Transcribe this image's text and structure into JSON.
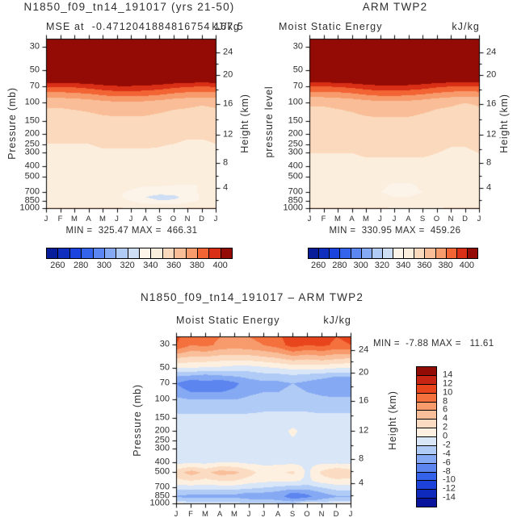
{
  "page": {
    "background": "#ffffff",
    "text_color": "#2e2e2e"
  },
  "chart_data": [
    {
      "type": "heatmap",
      "id": "model",
      "title": "N1850_f09_tn14_191017 (yrs 21-50)",
      "subtitle_left": "MSE at  -0.4712041884816754 167.5",
      "subtitle_right": "kJ/kg",
      "ylabel_left": "Pressure (mb)",
      "ylabel_right": "Height (km)",
      "stats": "MIN =  325.47 MAX =  466.31",
      "months": [
        "J",
        "F",
        "M",
        "A",
        "M",
        "J",
        "J",
        "A",
        "S",
        "O",
        "N",
        "D",
        "J"
      ],
      "pressure_ticks": [
        "30",
        "50",
        "70",
        "100",
        "150",
        "200",
        "250",
        "300",
        "400",
        "500",
        "700",
        "850",
        "1000"
      ],
      "height_ticks": [
        "24",
        "20",
        "16",
        "12",
        "8",
        "4"
      ],
      "colorbar_labels": [
        "260",
        "280",
        "300",
        "320",
        "340",
        "360",
        "380",
        "400"
      ],
      "palette": [
        "#071d9a",
        "#102fbf",
        "#1b44de",
        "#3564ec",
        "#5c86f1",
        "#85aaf3",
        "#b0cbf5",
        "#cddef5",
        "#fdf4e9",
        "#fceedd",
        "#fbd9bc",
        "#f9bd97",
        "#f79a6c",
        "#f26434",
        "#d92f16",
        "#930b04"
      ],
      "value_bins": {
        "min": 250,
        "step": 10
      },
      "pressure_levels": [
        25,
        30,
        40,
        50,
        60,
        70,
        85,
        100,
        150,
        200,
        300,
        400,
        500,
        600,
        700,
        780,
        850,
        925,
        1000
      ],
      "values": [
        [
          466,
          466,
          466,
          466,
          466,
          466,
          466,
          466,
          466,
          466,
          466,
          466,
          466
        ],
        [
          462,
          462,
          462,
          462,
          462,
          462,
          462,
          462,
          462,
          462,
          462,
          462,
          462
        ],
        [
          445,
          445,
          445,
          445,
          445,
          445,
          445,
          445,
          445,
          445,
          445,
          445,
          445
        ],
        [
          428,
          428,
          428,
          428,
          428,
          428,
          428,
          428,
          428,
          428,
          428,
          428,
          428
        ],
        [
          409,
          409,
          410,
          411,
          413,
          414,
          414,
          414,
          412,
          410,
          409,
          408,
          409
        ],
        [
          391,
          391,
          392,
          394,
          397,
          399,
          399,
          398,
          396,
          393,
          391,
          390,
          391
        ],
        [
          374,
          374,
          375,
          377,
          380,
          382,
          382,
          381,
          379,
          376,
          374,
          373,
          374
        ],
        [
          362,
          362,
          363,
          364,
          366,
          368,
          368,
          367,
          365,
          363,
          362,
          361,
          362
        ],
        [
          355,
          355,
          355,
          356,
          357,
          357,
          357,
          357,
          356,
          355,
          355,
          354,
          355
        ],
        [
          352,
          352,
          352,
          352,
          353,
          353,
          353,
          353,
          352,
          352,
          351,
          351,
          352
        ],
        [
          348,
          348,
          348,
          348,
          349,
          349,
          349,
          349,
          349,
          348,
          347,
          347,
          348
        ],
        [
          345,
          345,
          345,
          345,
          346,
          346,
          346,
          346,
          346,
          345,
          344,
          344,
          345
        ],
        [
          342,
          342,
          342,
          342,
          343,
          343,
          343,
          343,
          342,
          342,
          341,
          341,
          342
        ],
        [
          341,
          341,
          341,
          341,
          342,
          342,
          342,
          341,
          341,
          340,
          340,
          340,
          341
        ],
        [
          341,
          341,
          341,
          341,
          341,
          341,
          339,
          336,
          334,
          335,
          338,
          341,
          341
        ],
        [
          342,
          342,
          342,
          342,
          342,
          341,
          338,
          330,
          326,
          327,
          334,
          341,
          342
        ],
        [
          343,
          343,
          343,
          343,
          343,
          342,
          340,
          335,
          331,
          332,
          337,
          342,
          343
        ],
        [
          346,
          346,
          346,
          346,
          346,
          345,
          344,
          343,
          342,
          342,
          344,
          346,
          346
        ],
        [
          352,
          352,
          352,
          352,
          352,
          352,
          351,
          351,
          350,
          351,
          352,
          352,
          352
        ]
      ]
    },
    {
      "type": "heatmap",
      "id": "obs",
      "title": "ARM TWP2",
      "subtitle_left": "Moist Static Energy",
      "subtitle_right": "kJ/kg",
      "ylabel_left": "pressure level",
      "ylabel_right": "Height (km)",
      "stats": "MIN =  330.95 MAX =  459.26",
      "months": [
        "J",
        "F",
        "M",
        "A",
        "M",
        "J",
        "J",
        "A",
        "S",
        "O",
        "N",
        "D",
        "J"
      ],
      "pressure_ticks": [
        "30",
        "50",
        "70",
        "100",
        "150",
        "200",
        "250",
        "300",
        "400",
        "500",
        "700",
        "850",
        "1000"
      ],
      "height_ticks": [
        "24",
        "20",
        "16",
        "12",
        "8",
        "4"
      ],
      "colorbar_labels": [
        "260",
        "280",
        "300",
        "320",
        "340",
        "360",
        "380",
        "400"
      ],
      "palette": [
        "#071d9a",
        "#102fbf",
        "#1b44de",
        "#3564ec",
        "#5c86f1",
        "#85aaf3",
        "#b0cbf5",
        "#cddef5",
        "#fdf4e9",
        "#fceedd",
        "#fbd9bc",
        "#f9bd97",
        "#f79a6c",
        "#f26434",
        "#d92f16",
        "#930b04"
      ],
      "value_bins": {
        "min": 250,
        "step": 10
      },
      "pressure_levels": [
        25,
        30,
        40,
        50,
        60,
        70,
        85,
        100,
        150,
        200,
        300,
        400,
        500,
        600,
        700,
        780,
        850,
        925,
        1000
      ],
      "values": [
        [
          459,
          459,
          459,
          459,
          459,
          459,
          459,
          459,
          459,
          459,
          459,
          459,
          459
        ],
        [
          456,
          456,
          456,
          456,
          456,
          456,
          456,
          456,
          456,
          456,
          456,
          456,
          456
        ],
        [
          442,
          442,
          442,
          442,
          442,
          442,
          442,
          442,
          442,
          442,
          442,
          442,
          442
        ],
        [
          426,
          426,
          426,
          426,
          426,
          426,
          426,
          426,
          426,
          426,
          426,
          426,
          426
        ],
        [
          408,
          408,
          409,
          410,
          412,
          413,
          413,
          413,
          411,
          409,
          408,
          407,
          408
        ],
        [
          390,
          390,
          391,
          393,
          396,
          398,
          398,
          397,
          395,
          392,
          390,
          389,
          390
        ],
        [
          373,
          373,
          374,
          376,
          379,
          381,
          381,
          380,
          378,
          375,
          373,
          372,
          373
        ],
        [
          361,
          361,
          362,
          363,
          365,
          367,
          367,
          366,
          364,
          362,
          361,
          360,
          361
        ],
        [
          356,
          356,
          356,
          357,
          358,
          358,
          358,
          358,
          357,
          356,
          356,
          355,
          356
        ],
        [
          353,
          353,
          353,
          353,
          354,
          354,
          354,
          354,
          353,
          353,
          352,
          352,
          353
        ],
        [
          350,
          350,
          350,
          350,
          351,
          351,
          351,
          351,
          351,
          350,
          349,
          349,
          350
        ],
        [
          347,
          347,
          347,
          347,
          348,
          348,
          348,
          348,
          348,
          347,
          346,
          346,
          347
        ],
        [
          344,
          344,
          344,
          344,
          345,
          344,
          343,
          343,
          344,
          344,
          343,
          343,
          344
        ],
        [
          342,
          342,
          342,
          342,
          342,
          341,
          339,
          339,
          341,
          342,
          341,
          341,
          342
        ],
        [
          341,
          341,
          341,
          341,
          341,
          340,
          339,
          339,
          340,
          341,
          340,
          340,
          341
        ],
        [
          341,
          341,
          341,
          341,
          341,
          341,
          340,
          340,
          341,
          341,
          341,
          341,
          341
        ],
        [
          342,
          342,
          342,
          342,
          342,
          342,
          341,
          341,
          342,
          342,
          342,
          342,
          342
        ],
        [
          345,
          345,
          345,
          345,
          345,
          345,
          345,
          345,
          345,
          345,
          345,
          345,
          345
        ],
        [
          352,
          352,
          352,
          352,
          352,
          352,
          351,
          351,
          351,
          351,
          352,
          352,
          352
        ]
      ]
    },
    {
      "type": "heatmap",
      "id": "diff",
      "title": "N1850_f09_tn14_191017 – ARM TWP2",
      "subtitle_left": "Moist Static Energy",
      "subtitle_right": "kJ/kg",
      "ylabel_left": "Pressure (mb)",
      "ylabel_right": "Height (km)",
      "stats": "MIN =  -7.88 MAX =   11.61",
      "months": [
        "J",
        "F",
        "M",
        "A",
        "M",
        "J",
        "J",
        "A",
        "S",
        "O",
        "N",
        "D",
        "J"
      ],
      "pressure_ticks": [
        "30",
        "50",
        "70",
        "100",
        "150",
        "200",
        "250",
        "300",
        "400",
        "500",
        "700",
        "850",
        "1000"
      ],
      "height_ticks": [
        "24",
        "20",
        "16",
        "12",
        "8",
        "4"
      ],
      "colorbar_labels": [
        "14",
        "12",
        "10",
        "8",
        "6",
        "4",
        "2",
        "0",
        "-2",
        "-4",
        "-6",
        "-8",
        "-10",
        "-12",
        "-14"
      ],
      "palette": [
        "#07149b",
        "#0e2abc",
        "#1c42da",
        "#3562ea",
        "#5c85f0",
        "#85a9f3",
        "#b0cbf5",
        "#d8e6f8",
        "#fdf0e0",
        "#fbdcc2",
        "#f9bf9b",
        "#f79a6c",
        "#f4703c",
        "#e8451d",
        "#c52512",
        "#920b04"
      ],
      "value_bins": {
        "min": -16,
        "step": 2
      },
      "pressure_levels": [
        25,
        30,
        40,
        50,
        60,
        70,
        85,
        100,
        150,
        200,
        300,
        400,
        500,
        600,
        700,
        780,
        850,
        925,
        1000
      ],
      "values": [
        [
          10.5,
          8.5,
          9,
          8,
          7.5,
          8,
          8.5,
          9.5,
          11.5,
          10.5,
          11,
          10,
          10.5
        ],
        [
          10,
          8,
          8.5,
          7.5,
          7,
          7.5,
          8,
          9,
          11,
          10,
          10.5,
          9.5,
          10
        ],
        [
          4,
          3.5,
          3.5,
          3,
          3,
          3,
          3.5,
          4,
          5,
          4.5,
          5,
          4.5,
          4
        ],
        [
          0,
          0,
          -0.5,
          -0.5,
          -1,
          -1,
          -0.5,
          0,
          0.5,
          0.5,
          0.5,
          0,
          0
        ],
        [
          -4,
          -4.5,
          -5,
          -4.5,
          -4,
          -3.5,
          -3,
          -3,
          -2.5,
          -3,
          -3.5,
          -4,
          -4
        ],
        [
          -6,
          -7.5,
          -6.5,
          -7.5,
          -6.5,
          -5,
          -4.5,
          -4.5,
          -4,
          -4.5,
          -5,
          -5.5,
          -6
        ],
        [
          -5,
          -6,
          -6,
          -6,
          -5.5,
          -4.5,
          -4,
          -4,
          -3.5,
          -4,
          -4.5,
          -5,
          -5
        ],
        [
          -3.5,
          -4,
          -4,
          -4,
          -4,
          -3.5,
          -3,
          -3,
          -3,
          -3,
          -3.5,
          -3.5,
          -3.5
        ],
        [
          -1.5,
          -1.5,
          -1.5,
          -1.5,
          -1.5,
          -1.5,
          -1.5,
          -1.5,
          -1.5,
          -1.5,
          -1.5,
          -1.5,
          -1.5
        ],
        [
          -1,
          -1,
          -1,
          -1,
          -1,
          -1,
          -1,
          -1,
          0.5,
          -1,
          -1,
          -1,
          -1
        ],
        [
          -1,
          -1,
          -1,
          -1,
          -1,
          -1,
          -1,
          -1,
          -1,
          -1,
          -1,
          -1,
          -1
        ],
        [
          -0.5,
          -0.5,
          -0.5,
          0,
          0,
          -0.5,
          -0.5,
          -0.5,
          -0.5,
          -0.5,
          -0.5,
          -0.5,
          -0.5
        ],
        [
          3,
          5,
          3.5,
          5,
          4.5,
          3,
          1,
          1.5,
          2.5,
          -0.5,
          2.5,
          4,
          3
        ],
        [
          1.5,
          2,
          1.5,
          2,
          2,
          1,
          0.5,
          0.5,
          0.5,
          -0.5,
          1,
          1.5,
          1.5
        ],
        [
          -1,
          -1,
          -1,
          -1,
          -1,
          -1.5,
          -2,
          -2.5,
          -3,
          -3,
          -2,
          -1,
          -1
        ],
        [
          -3,
          -3.5,
          -3.5,
          -3.5,
          -3.5,
          -4,
          -4,
          -4.5,
          -6,
          -5.5,
          -4,
          -3,
          -3
        ],
        [
          -4.2,
          -4.5,
          -4.5,
          -4.5,
          -4.5,
          -5,
          -5,
          -5,
          -7.5,
          -6.5,
          -5,
          -4.2,
          -4.2
        ],
        [
          -3,
          -3,
          -3,
          -3,
          -3,
          -3.5,
          -3.5,
          -4,
          -5,
          -4.5,
          -3.5,
          -3,
          -3
        ],
        [
          2.5,
          -1,
          -1,
          -1,
          -1,
          -1,
          -1,
          -1.5,
          -2,
          2.5,
          0.5,
          1,
          2.5
        ]
      ]
    }
  ]
}
